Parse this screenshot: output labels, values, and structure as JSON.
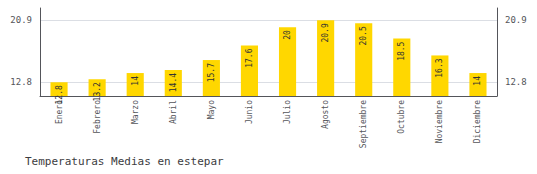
{
  "chart_data": {
    "type": "bar",
    "title": "Temperaturas Medias en estepar",
    "categories": [
      "Enero",
      "Febrero",
      "Marzo",
      "Abril",
      "Mayo",
      "Junio",
      "Julio",
      "Agosto",
      "Septiembre",
      "Octubre",
      "Noviembre",
      "Diciembre"
    ],
    "values": [
      12.8,
      13.2,
      14.0,
      14.4,
      15.7,
      17.6,
      20.0,
      20.9,
      20.5,
      18.5,
      16.3,
      14.0
    ],
    "color": "#FFD700",
    "ylim": [
      11.0,
      22.5
    ],
    "yticks": [
      12.8,
      20.9
    ],
    "y2lim": [
      11.0,
      22.5
    ],
    "y2ticks": [
      12.8,
      20.9
    ],
    "grid": true,
    "data_labels": true
  }
}
